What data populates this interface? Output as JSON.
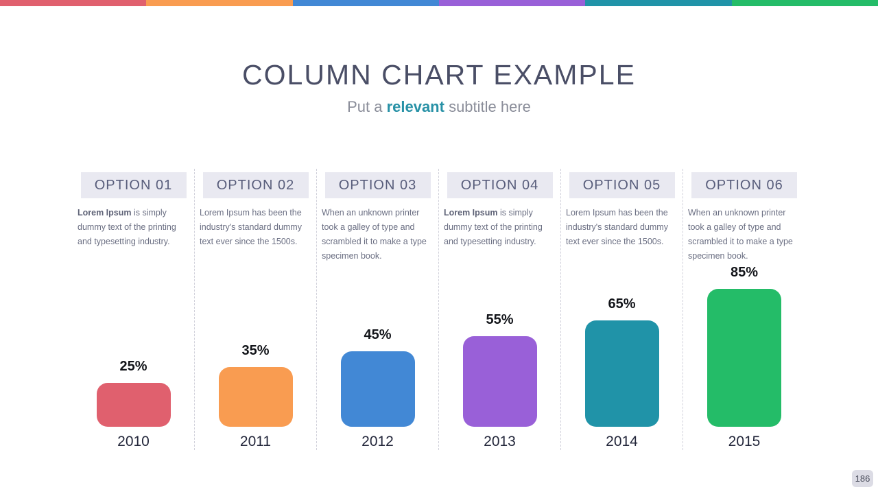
{
  "slide": {
    "title": "COLUMN CHART EXAMPLE",
    "subtitle": {
      "pre": "Put a ",
      "highlight": "relevant",
      "post": " subtitle here"
    },
    "highlight_color": "#2791A6",
    "page_number": "186"
  },
  "columns": [
    {
      "header": "OPTION 01",
      "body_bold": "Lorem Ipsum",
      "body_rest": " is simply dummy text of the printing and typesetting industry.",
      "percent_label": "25%",
      "year": "2010"
    },
    {
      "header": "OPTION 02",
      "body_bold": "",
      "body_rest": "Lorem Ipsum has been the industry's standard dummy text ever since the 1500s.",
      "percent_label": "35%",
      "year": "2011"
    },
    {
      "header": "OPTION 03",
      "body_bold": "",
      "body_rest": "When an unknown printer took a galley of type and scrambled it to make a type specimen book.",
      "percent_label": "45%",
      "year": "2012"
    },
    {
      "header": "OPTION 04",
      "body_bold": "Lorem Ipsum",
      "body_rest": " is simply dummy text of the printing and typesetting industry.",
      "percent_label": "55%",
      "year": "2013"
    },
    {
      "header": "OPTION 05",
      "body_bold": "",
      "body_rest": "Lorem Ipsum has been the industry's standard dummy text ever since the 1500s.",
      "percent_label": "65%",
      "year": "2014"
    },
    {
      "header": "OPTION 06",
      "body_bold": "",
      "body_rest": "When an unknown printer took a galley of type and scrambled it to make a type specimen book.",
      "percent_label": "85%",
      "year": "2015"
    }
  ],
  "chart_data": {
    "type": "bar",
    "title": "COLUMN CHART EXAMPLE",
    "subtitle": "Put a relevant subtitle here",
    "categories": [
      "2010",
      "2011",
      "2012",
      "2013",
      "2014",
      "2015"
    ],
    "values": [
      25,
      35,
      45,
      55,
      65,
      85
    ],
    "value_labels": [
      "25%",
      "35%",
      "45%",
      "55%",
      "65%",
      "85%"
    ],
    "colors": [
      "#E0606E",
      "#F99C51",
      "#4288D5",
      "#9960D8",
      "#2093A8",
      "#24BC68"
    ],
    "xlabel": "",
    "ylabel": "",
    "unit": "percent",
    "ylim": [
      0,
      100
    ],
    "grid": false,
    "legend": false
  }
}
